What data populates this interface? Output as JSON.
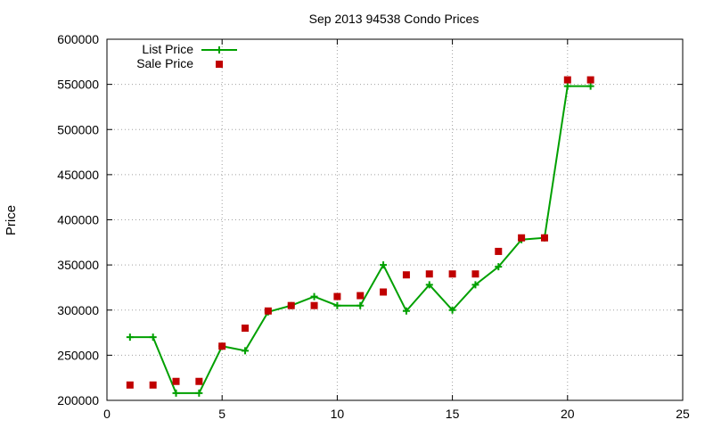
{
  "chart_data": {
    "type": "line",
    "title": "Sep 2013 94538 Condo Prices",
    "xlabel": "",
    "ylabel": "Price",
    "xlim": [
      0,
      25
    ],
    "ylim": [
      200000,
      600000
    ],
    "x_ticks": [
      0,
      5,
      10,
      15,
      20,
      25
    ],
    "y_ticks": [
      200000,
      250000,
      300000,
      350000,
      400000,
      450000,
      500000,
      550000,
      600000
    ],
    "grid": true,
    "legend_position": "top-left",
    "series": [
      {
        "name": "List Price",
        "style": "line-with-plus-markers",
        "color": "#00a000",
        "x": [
          1,
          2,
          3,
          4,
          5,
          6,
          7,
          8,
          9,
          10,
          11,
          12,
          13,
          14,
          15,
          16,
          17,
          18,
          19,
          20,
          21
        ],
        "y": [
          270000,
          270000,
          208000,
          208000,
          260000,
          255000,
          298000,
          305000,
          315000,
          305000,
          305000,
          350000,
          299000,
          328000,
          300000,
          328000,
          348000,
          378000,
          380000,
          548000,
          548000
        ]
      },
      {
        "name": "Sale Price",
        "style": "square-markers",
        "color": "#c00000",
        "x": [
          1,
          2,
          3,
          4,
          5,
          6,
          7,
          8,
          9,
          10,
          11,
          12,
          13,
          14,
          15,
          16,
          17,
          18,
          19,
          20,
          21
        ],
        "y": [
          217000,
          217000,
          221000,
          221000,
          260000,
          280000,
          299000,
          305000,
          305000,
          315000,
          316000,
          320000,
          339000,
          340000,
          340000,
          340000,
          365000,
          380000,
          380000,
          555000,
          555000
        ]
      }
    ]
  }
}
